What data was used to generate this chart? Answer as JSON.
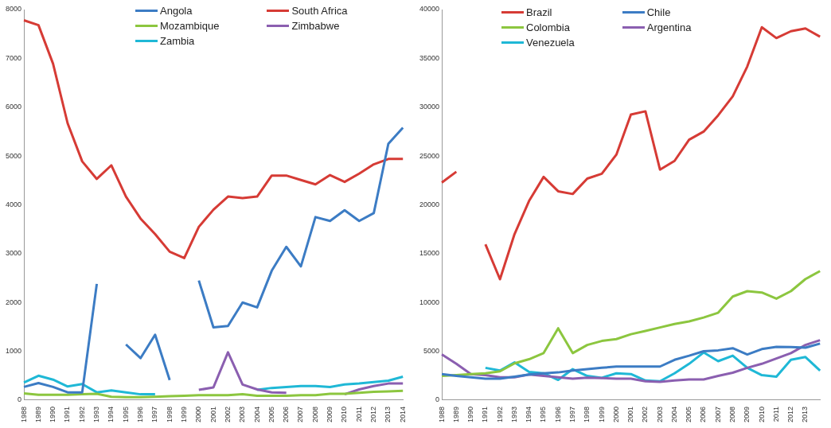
{
  "chart_data": [
    {
      "type": "line",
      "categories": [
        "1988",
        "1989",
        "1990",
        "1991",
        "1992",
        "1993",
        "1994",
        "1995",
        "1996",
        "1997",
        "1998",
        "1999",
        "2000",
        "2001",
        "2002",
        "2003",
        "2004",
        "2005",
        "2006",
        "2007",
        "2008",
        "2009",
        "2010",
        "2011",
        "2012",
        "2013",
        "2014"
      ],
      "ylim": [
        0,
        8000
      ],
      "yticks": [
        0,
        1000,
        2000,
        3000,
        4000,
        5000,
        6000,
        7000,
        8000
      ],
      "grid": false,
      "legend": "top",
      "marker": "none",
      "line_style": "solid",
      "series": [
        {
          "name": "Angola",
          "color": "#3c7cc4",
          "values": [
            270,
            350,
            270,
            160,
            160,
            2380,
            null,
            1140,
            860,
            1340,
            410,
            null,
            2450,
            1490,
            1520,
            2000,
            1900,
            2650,
            3140,
            2740,
            3750,
            3670,
            3890,
            3670,
            3830,
            5250,
            5580
          ]
        },
        {
          "name": "South Africa",
          "color": "#d63b35",
          "values": [
            7780,
            7680,
            6890,
            5670,
            4890,
            4530,
            4810,
            4170,
            3720,
            3400,
            3040,
            2910,
            3550,
            3900,
            4170,
            4140,
            4170,
            4600,
            4600,
            4510,
            4420,
            4610,
            4470,
            4640,
            4830,
            4940,
            4940
          ]
        },
        {
          "name": "Mozambique",
          "color": "#8cc63f",
          "values": [
            140,
            110,
            110,
            110,
            120,
            130,
            70,
            60,
            60,
            70,
            80,
            90,
            100,
            100,
            100,
            120,
            90,
            90,
            90,
            100,
            100,
            130,
            130,
            150,
            170,
            180,
            190
          ]
        },
        {
          "name": "Zimbabwe",
          "color": "#8b5fb0",
          "values": [
            null,
            null,
            null,
            null,
            null,
            null,
            null,
            null,
            null,
            null,
            null,
            null,
            210,
            260,
            980,
            320,
            220,
            160,
            150,
            null,
            null,
            null,
            120,
            220,
            290,
            340,
            340
          ]
        },
        {
          "name": "Zambia",
          "color": "#1fb8d6",
          "values": [
            360,
            500,
            420,
            280,
            330,
            160,
            200,
            160,
            120,
            120,
            null,
            null,
            null,
            null,
            null,
            null,
            210,
            250,
            270,
            290,
            290,
            270,
            320,
            340,
            370,
            400,
            480
          ]
        }
      ]
    },
    {
      "type": "line",
      "categories": [
        "1988",
        "1989",
        "1990",
        "1991",
        "1992",
        "1993",
        "1994",
        "1995",
        "1996",
        "1997",
        "1998",
        "1999",
        "2000",
        "2001",
        "2002",
        "2003",
        "2004",
        "2005",
        "2006",
        "2007",
        "2008",
        "2009",
        "2010",
        "2011",
        "2012",
        "2013",
        null
      ],
      "ylim": [
        0,
        40000
      ],
      "yticks": [
        0,
        5000,
        10000,
        15000,
        20000,
        25000,
        30000,
        35000,
        40000
      ],
      "grid": false,
      "legend": "top left",
      "marker": "none",
      "line_style": "solid",
      "series": [
        {
          "name": "Brazil",
          "color": "#d63b35",
          "values": [
            22280,
            23390,
            null,
            15960,
            12380,
            17000,
            20400,
            22860,
            21390,
            21110,
            22690,
            23190,
            25140,
            29250,
            29580,
            23610,
            24500,
            26670,
            27500,
            29170,
            31110,
            34170,
            38190,
            37080,
            37780,
            38060,
            37220
          ]
        },
        {
          "name": "Chile",
          "color": "#3c7cc4",
          "values": [
            2670,
            2480,
            2340,
            2200,
            2200,
            2400,
            2620,
            2750,
            2840,
            3030,
            3170,
            3310,
            3440,
            3440,
            3440,
            3440,
            4130,
            4550,
            5010,
            5100,
            5320,
            4680,
            5230,
            5450,
            5430,
            5370,
            5790
          ]
        },
        {
          "name": "Colombia",
          "color": "#8cc63f",
          "values": [
            2480,
            2560,
            2670,
            2750,
            2950,
            3770,
            4190,
            4820,
            7360,
            4820,
            5650,
            6060,
            6250,
            6750,
            7080,
            7440,
            7800,
            8070,
            8460,
            8950,
            10610,
            11160,
            11020,
            10390,
            11160,
            12400,
            13220
          ]
        },
        {
          "name": "Argentina",
          "color": "#8b5fb0",
          "values": [
            4680,
            3720,
            2670,
            2560,
            2340,
            2340,
            2620,
            2480,
            2340,
            2200,
            2290,
            2260,
            2200,
            2200,
            1930,
            1870,
            2010,
            2120,
            2120,
            2480,
            2810,
            3310,
            3720,
            4270,
            4820,
            5650,
            6140
          ]
        },
        {
          "name": "Venezuela",
          "color": "#1fb8d6",
          "values": [
            null,
            null,
            null,
            3310,
            3030,
            3860,
            2890,
            2750,
            2070,
            3170,
            2480,
            2290,
            2750,
            2670,
            2010,
            1930,
            2750,
            3720,
            4880,
            3990,
            4550,
            3310,
            2560,
            2400,
            4130,
            4410,
            3030
          ]
        }
      ]
    }
  ]
}
